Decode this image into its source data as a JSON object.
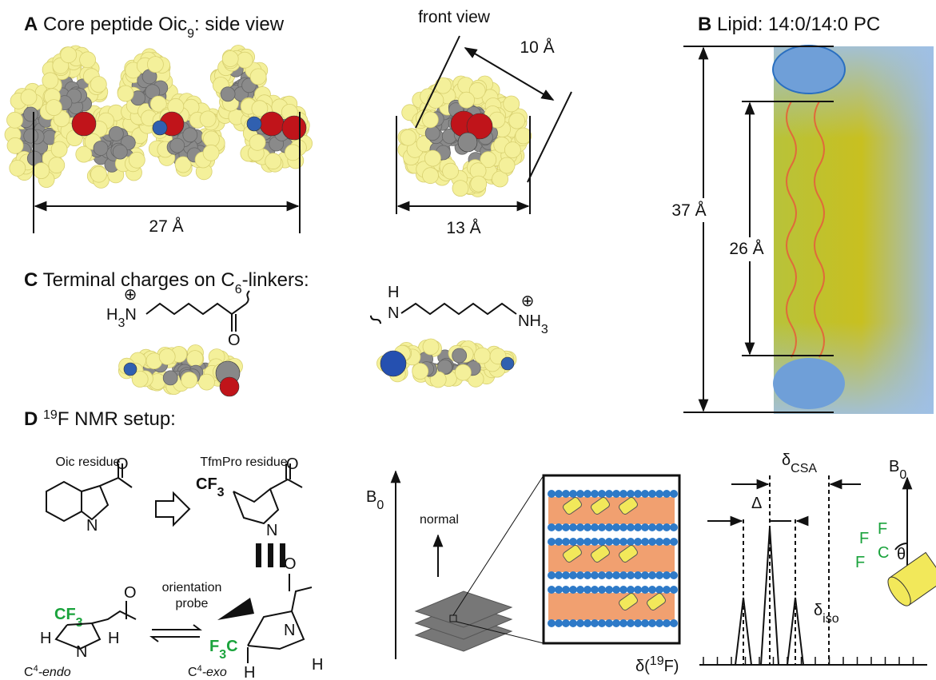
{
  "panel_a": {
    "letter": "A",
    "title": "Core peptide Oic",
    "title_sub": "9",
    "title_end": ": side view",
    "front_view": "front view",
    "width_front": "10 Å",
    "length_side": "27 Å",
    "width_front_base": "13 Å"
  },
  "panel_b": {
    "letter": "B",
    "title": "Lipid: 14:0/14:0 PC",
    "bilayer_thickness": "37 Å",
    "core_thickness": "26 Å"
  },
  "panel_c": {
    "letter": "C",
    "title": "Terminal charges on C",
    "title_sub": "6",
    "title_end": "-linkers:",
    "n_terminal": {
      "charge": "⊕",
      "h": "H",
      "h_sub": "3",
      "n": "N",
      "oxygen": "O"
    },
    "c_terminal": {
      "h": "H",
      "n": "N",
      "charge": "⊕",
      "nh": "NH",
      "nh_sub": "3"
    }
  },
  "panel_d": {
    "letter": "D",
    "title_sup": "19",
    "title": "F NMR setup:",
    "oic_label": "Oic residue",
    "tfmpro_label": "TfmPro residue",
    "oic": {
      "n": "N",
      "o": "O"
    },
    "tfmpro": {
      "cf": "CF",
      "cf_sub": "3",
      "n": "N",
      "o": "O"
    },
    "probe_label": [
      "orientation",
      "probe"
    ],
    "endo": {
      "cf": "CF",
      "cf_sub": "3",
      "h_left": "H",
      "n": "N",
      "h_right": "H",
      "o": "O",
      "label": "C",
      "label_sup": "4",
      "label_end": "-endo"
    },
    "exo": {
      "f": "F",
      "f_sub": "3",
      "c": "C",
      "h_bottom": "H",
      "n": "N",
      "h_right": "H",
      "o": "O",
      "label": "C",
      "label_sup": "4",
      "label_end": "-exo"
    },
    "setup": {
      "field": "B",
      "field_sub": "0",
      "normal": "normal"
    },
    "spectrum": {
      "csa": "δ",
      "csa_sub": "CSA",
      "delta": "Δ",
      "iso": "δ",
      "iso_sub": "iso",
      "axis": "δ(",
      "axis_sup": "19",
      "axis_end": "F)"
    },
    "probe": {
      "field": "B",
      "field_sub": "0",
      "f1": "F",
      "f2": "F",
      "f3": "F",
      "c": "C",
      "theta": "θ"
    }
  }
}
